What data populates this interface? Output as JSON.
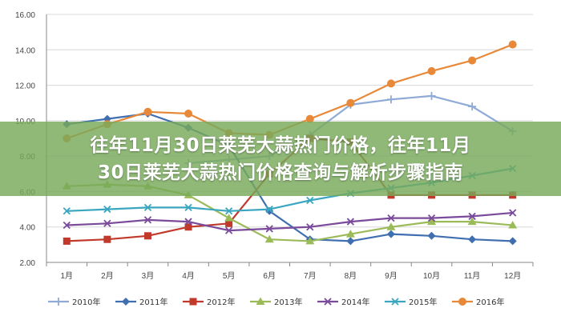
{
  "overlay": {
    "line1": "往年11月30日莱芜大蒜热门价格，往年11月",
    "line2": "30日莱芜大蒜热门价格查询与解析步骤指南"
  },
  "chart_data": {
    "type": "line",
    "title": "",
    "xlabel": "",
    "ylabel": "",
    "categories": [
      "1月",
      "2月",
      "3月",
      "4月",
      "5月",
      "6月",
      "7月",
      "8月",
      "9月",
      "10月",
      "11月",
      "12月"
    ],
    "ylim": [
      2.0,
      16.0
    ],
    "yticks": [
      "2.00",
      "4.00",
      "6.00",
      "8.00",
      "10.00",
      "12.00",
      "14.00",
      "16.00"
    ],
    "grid": true,
    "legend_position": "bottom",
    "series": [
      {
        "name": "2010年",
        "color": "#8faad6",
        "marker": "plus",
        "values": [
          null,
          null,
          null,
          7.6,
          7.8,
          8.0,
          9.2,
          10.9,
          11.2,
          11.4,
          10.8,
          9.4
        ]
      },
      {
        "name": "2011年",
        "color": "#3f6fb0",
        "marker": "diamond",
        "values": [
          9.8,
          10.1,
          10.4,
          9.6,
          8.6,
          4.9,
          3.3,
          3.2,
          3.6,
          3.5,
          3.3,
          3.2
        ]
      },
      {
        "name": "2012年",
        "color": "#c0392b",
        "marker": "square",
        "values": [
          3.2,
          3.3,
          3.5,
          4.0,
          4.2,
          7.0,
          9.0,
          8.8,
          5.8,
          5.8,
          5.8,
          5.8
        ]
      },
      {
        "name": "2013年",
        "color": "#9bbb59",
        "marker": "triangle",
        "values": [
          6.3,
          6.4,
          6.3,
          5.8,
          4.5,
          3.3,
          3.2,
          3.6,
          4.0,
          4.3,
          4.3,
          4.1
        ]
      },
      {
        "name": "2014年",
        "color": "#7a4a9b",
        "marker": "x",
        "values": [
          4.1,
          4.2,
          4.4,
          4.3,
          3.8,
          3.9,
          4.0,
          4.3,
          4.5,
          4.5,
          4.6,
          4.8
        ]
      },
      {
        "name": "2015年",
        "color": "#3aa6c0",
        "marker": "x",
        "values": [
          4.9,
          5.0,
          5.1,
          5.1,
          4.9,
          5.0,
          5.5,
          5.9,
          6.2,
          6.5,
          6.9,
          7.3
        ]
      },
      {
        "name": "2016年",
        "color": "#e8893a",
        "marker": "circle",
        "values": [
          9.0,
          9.8,
          10.5,
          10.4,
          9.3,
          9.2,
          10.1,
          11.0,
          12.1,
          12.8,
          13.4,
          14.3
        ]
      }
    ]
  }
}
